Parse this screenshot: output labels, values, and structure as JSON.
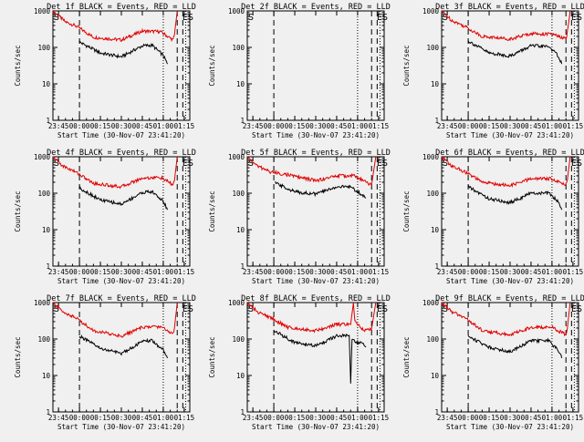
{
  "figure": {
    "background": "#f0f0f0",
    "axis_color": "#000000",
    "events_color": "#000000",
    "lld_color": "#e00000"
  },
  "chart_data": [
    {
      "type": "line",
      "title": "Det 1f BLACK = Events, RED = LLD",
      "xlabel": "Start Time (30-Nov-07 23:41:20)",
      "ylabel": "Counts/sec",
      "y_scale": "log",
      "ylim": [
        1,
        1000
      ],
      "x_ticks": [
        "23:45",
        "00:00",
        "00:15",
        "00:30",
        "00:45",
        "01:00",
        "01:15"
      ],
      "markers": [
        {
          "label": "S",
          "x": "23:41"
        },
        {
          "label": "E",
          "x": "01:13"
        },
        {
          "label": "S",
          "x": "01:17"
        }
      ],
      "vlines_dashed": [
        "00:00",
        "01:10",
        "01:14"
      ],
      "vlines_dotted": [
        "01:00",
        "01:16"
      ],
      "series": [
        {
          "name": "LLD",
          "color": "#e00000",
          "points": [
            [
              "23:41",
              1000
            ],
            [
              "23:50",
              500
            ],
            [
              "23:58",
              380
            ],
            [
              "00:10",
              190
            ],
            [
              "00:30",
              160
            ],
            [
              "00:45",
              280
            ],
            [
              "00:58",
              270
            ],
            [
              "01:07",
              160
            ],
            [
              "01:08",
              220
            ],
            [
              "01:10",
              1000
            ]
          ]
        },
        {
          "name": "Events",
          "color": "#000000",
          "points": [
            [
              "00:00",
              140
            ],
            [
              "00:15",
              70
            ],
            [
              "00:30",
              55
            ],
            [
              "00:45",
              110
            ],
            [
              "00:52",
              115
            ],
            [
              "01:00",
              60
            ],
            [
              "01:03",
              35
            ]
          ]
        }
      ]
    },
    {
      "type": "line",
      "title": "Det 2f BLACK = Events, RED = LLD",
      "xlabel": "Start Time (30-Nov-07 23:41:20)",
      "ylabel": "Counts/sec",
      "y_scale": "log",
      "ylim": [
        1,
        1000
      ],
      "x_ticks": [
        "23:45",
        "00:00",
        "00:15",
        "00:30",
        "00:45",
        "01:00",
        "01:15"
      ],
      "markers": [
        {
          "label": "S",
          "x": "23:41"
        },
        {
          "label": "E",
          "x": "01:13"
        },
        {
          "label": "S",
          "x": "01:17"
        }
      ],
      "vlines_dashed": [
        "00:00",
        "01:10",
        "01:14"
      ],
      "vlines_dotted": [
        "01:00",
        "01:16"
      ],
      "series": []
    },
    {
      "type": "line",
      "title": "Det 3f BLACK = Events, RED = LLD",
      "xlabel": "Start Time (30-Nov-07 23:41:20)",
      "ylabel": "Counts/sec",
      "y_scale": "log",
      "ylim": [
        1,
        1000
      ],
      "x_ticks": [
        "23:45",
        "00:00",
        "00:15",
        "00:30",
        "00:45",
        "01:00",
        "01:15"
      ],
      "markers": [
        {
          "label": "S",
          "x": "23:41"
        },
        {
          "label": "E",
          "x": "01:13"
        },
        {
          "label": "S",
          "x": "01:17"
        }
      ],
      "vlines_dashed": [
        "00:00",
        "01:10",
        "01:14"
      ],
      "vlines_dotted": [
        "01:00",
        "01:16"
      ],
      "series": [
        {
          "name": "LLD",
          "color": "#e00000",
          "points": [
            [
              "23:41",
              1000
            ],
            [
              "23:48",
              560
            ],
            [
              "23:58",
              370
            ],
            [
              "00:10",
              200
            ],
            [
              "00:30",
              170
            ],
            [
              "00:45",
              240
            ],
            [
              "01:00",
              230
            ],
            [
              "01:10",
              170
            ],
            [
              "01:11",
              260
            ],
            [
              "01:13",
              1000
            ]
          ]
        },
        {
          "name": "Events",
          "color": "#000000",
          "points": [
            [
              "00:00",
              150
            ],
            [
              "00:15",
              70
            ],
            [
              "00:30",
              58
            ],
            [
              "00:45",
              110
            ],
            [
              "00:58",
              105
            ],
            [
              "01:05",
              55
            ],
            [
              "01:07",
              35
            ]
          ]
        }
      ]
    },
    {
      "type": "line",
      "title": "Det 4f BLACK = Events, RED = LLD",
      "xlabel": "Start Time (30-Nov-07 23:41:20)",
      "ylabel": "Counts/sec",
      "y_scale": "log",
      "ylim": [
        1,
        1000
      ],
      "x_ticks": [
        "23:45",
        "00:00",
        "00:15",
        "00:30",
        "00:45",
        "01:00",
        "01:15"
      ],
      "markers": [
        {
          "label": "S",
          "x": "23:41"
        },
        {
          "label": "E",
          "x": "01:13"
        },
        {
          "label": "S",
          "x": "01:17"
        }
      ],
      "vlines_dashed": [
        "00:00",
        "01:10",
        "01:14"
      ],
      "vlines_dotted": [
        "01:00",
        "01:16"
      ],
      "series": [
        {
          "name": "LLD",
          "color": "#e00000",
          "points": [
            [
              "23:41",
              1000
            ],
            [
              "23:48",
              560
            ],
            [
              "23:58",
              370
            ],
            [
              "00:10",
              185
            ],
            [
              "00:30",
              150
            ],
            [
              "00:45",
              260
            ],
            [
              "00:58",
              270
            ],
            [
              "01:07",
              170
            ],
            [
              "01:08",
              220
            ],
            [
              "01:10",
              1000
            ]
          ]
        },
        {
          "name": "Events",
          "color": "#000000",
          "points": [
            [
              "00:00",
              140
            ],
            [
              "00:15",
              65
            ],
            [
              "00:30",
              50
            ],
            [
              "00:45",
              105
            ],
            [
              "00:52",
              110
            ],
            [
              "01:00",
              60
            ],
            [
              "01:03",
              35
            ]
          ]
        }
      ]
    },
    {
      "type": "line",
      "title": "Det 5f BLACK = Events, RED = LLD",
      "xlabel": "Start Time (30-Nov-07 23:41:20)",
      "ylabel": "Counts/sec",
      "y_scale": "log",
      "ylim": [
        1,
        1000
      ],
      "x_ticks": [
        "23:45",
        "00:00",
        "00:15",
        "00:30",
        "00:45",
        "01:00",
        "01:15"
      ],
      "markers": [
        {
          "label": "S",
          "x": "23:41"
        },
        {
          "label": "E",
          "x": "01:13"
        },
        {
          "label": "S",
          "x": "01:17"
        }
      ],
      "vlines_dashed": [
        "00:00",
        "01:10",
        "01:14"
      ],
      "vlines_dotted": [
        "01:00",
        "01:16"
      ],
      "series": [
        {
          "name": "LLD",
          "color": "#e00000",
          "points": [
            [
              "23:41",
              1000
            ],
            [
              "23:48",
              560
            ],
            [
              "23:58",
              380
            ],
            [
              "00:10",
              320
            ],
            [
              "00:30",
              220
            ],
            [
              "00:45",
              300
            ],
            [
              "00:58",
              300
            ],
            [
              "01:07",
              190
            ],
            [
              "01:10",
              170
            ],
            [
              "01:13",
              1000
            ]
          ]
        },
        {
          "name": "Events",
          "color": "#000000",
          "points": [
            [
              "00:01",
              190
            ],
            [
              "00:15",
              110
            ],
            [
              "00:30",
              95
            ],
            [
              "00:45",
              150
            ],
            [
              "00:55",
              150
            ],
            [
              "01:03",
              90
            ],
            [
              "01:06",
              75
            ]
          ]
        }
      ]
    },
    {
      "type": "line",
      "title": "Det 6f BLACK = Events, RED = LLD",
      "xlabel": "Start Time (30-Nov-07 23:41:20)",
      "ylabel": "Counts/sec",
      "y_scale": "log",
      "ylim": [
        1,
        1000
      ],
      "x_ticks": [
        "23:45",
        "00:00",
        "00:15",
        "00:30",
        "00:45",
        "01:00",
        "01:15"
      ],
      "markers": [
        {
          "label": "S",
          "x": "23:41"
        },
        {
          "label": "E",
          "x": "01:13"
        },
        {
          "label": "S",
          "x": "01:17"
        }
      ],
      "vlines_dashed": [
        "00:00",
        "01:10",
        "01:14"
      ],
      "vlines_dotted": [
        "01:00",
        "01:16"
      ],
      "series": [
        {
          "name": "LLD",
          "color": "#e00000",
          "points": [
            [
              "23:41",
              1000
            ],
            [
              "23:48",
              560
            ],
            [
              "23:58",
              380
            ],
            [
              "00:10",
              200
            ],
            [
              "00:30",
              160
            ],
            [
              "00:45",
              250
            ],
            [
              "01:00",
              250
            ],
            [
              "01:10",
              170
            ],
            [
              "01:11",
              230
            ],
            [
              "01:13",
              1000
            ]
          ]
        },
        {
          "name": "Events",
          "color": "#000000",
          "points": [
            [
              "00:00",
              150
            ],
            [
              "00:15",
              70
            ],
            [
              "00:30",
              55
            ],
            [
              "00:45",
              100
            ],
            [
              "00:58",
              100
            ],
            [
              "01:05",
              55
            ],
            [
              "01:07",
              35
            ]
          ]
        }
      ]
    },
    {
      "type": "line",
      "title": "Det 7f BLACK = Events, RED = LLD",
      "xlabel": "Start Time (30-Nov-07 23:41:20)",
      "ylabel": "Counts/sec",
      "y_scale": "log",
      "ylim": [
        1,
        1000
      ],
      "x_ticks": [
        "23:45",
        "00:00",
        "00:15",
        "00:30",
        "00:45",
        "01:00",
        "01:15"
      ],
      "markers": [
        {
          "label": "S",
          "x": "23:41"
        },
        {
          "label": "E",
          "x": "01:13"
        },
        {
          "label": "S",
          "x": "01:17"
        }
      ],
      "vlines_dashed": [
        "00:00",
        "01:10",
        "01:14"
      ],
      "vlines_dotted": [
        "01:00",
        "01:16"
      ],
      "series": [
        {
          "name": "LLD",
          "color": "#e00000",
          "points": [
            [
              "23:41",
              1000
            ],
            [
              "23:48",
              560
            ],
            [
              "23:58",
              370
            ],
            [
              "00:10",
              170
            ],
            [
              "00:30",
              120
            ],
            [
              "00:45",
              210
            ],
            [
              "00:58",
              220
            ],
            [
              "01:07",
              140
            ],
            [
              "01:08",
              200
            ],
            [
              "01:10",
              1000
            ]
          ]
        },
        {
          "name": "Events",
          "color": "#000000",
          "points": [
            [
              "00:00",
              120
            ],
            [
              "00:15",
              55
            ],
            [
              "00:30",
              40
            ],
            [
              "00:45",
              85
            ],
            [
              "00:52",
              90
            ],
            [
              "01:00",
              50
            ],
            [
              "01:03",
              30
            ]
          ]
        }
      ]
    },
    {
      "type": "line",
      "title": "Det 8f BLACK = Events, RED = LLD",
      "xlabel": "Start Time (30-Nov-07 23:41:20)",
      "ylabel": "Counts/sec",
      "y_scale": "log",
      "ylim": [
        1,
        1000
      ],
      "x_ticks": [
        "23:45",
        "00:00",
        "00:15",
        "00:30",
        "00:45",
        "01:00",
        "01:15"
      ],
      "markers": [
        {
          "label": "S",
          "x": "23:41"
        },
        {
          "label": "E",
          "x": "01:13"
        },
        {
          "label": "S",
          "x": "01:17"
        }
      ],
      "vlines_dashed": [
        "00:00",
        "01:10",
        "01:14"
      ],
      "vlines_dotted": [
        "01:00",
        "01:16"
      ],
      "series": [
        {
          "name": "LLD",
          "color": "#e00000",
          "points": [
            [
              "23:41",
              1000
            ],
            [
              "23:48",
              560
            ],
            [
              "23:58",
              380
            ],
            [
              "00:10",
              210
            ],
            [
              "00:30",
              170
            ],
            [
              "00:45",
              250
            ],
            [
              "00:55",
              250
            ],
            [
              "00:57",
              1000
            ],
            [
              "00:58",
              300
            ],
            [
              "01:05",
              170
            ],
            [
              "01:10",
              190
            ],
            [
              "01:13",
              1000
            ]
          ]
        },
        {
          "name": "Events",
          "color": "#000000",
          "points": [
            [
              "00:00",
              170
            ],
            [
              "00:15",
              80
            ],
            [
              "00:30",
              65
            ],
            [
              "00:45",
              120
            ],
            [
              "00:54",
              125
            ],
            [
              "00:55",
              6
            ],
            [
              "00:56",
              90
            ],
            [
              "01:03",
              75
            ],
            [
              "01:06",
              60
            ]
          ]
        }
      ]
    },
    {
      "type": "line",
      "title": "Det 9f BLACK = Events, RED = LLD",
      "xlabel": "Start Time (30-Nov-07 23:41:20)",
      "ylabel": "Counts/sec",
      "y_scale": "log",
      "ylim": [
        1,
        1000
      ],
      "x_ticks": [
        "23:45",
        "00:00",
        "00:15",
        "00:30",
        "00:45",
        "01:00",
        "01:15"
      ],
      "markers": [
        {
          "label": "S",
          "x": "23:41"
        },
        {
          "label": "E",
          "x": "01:13"
        },
        {
          "label": "S",
          "x": "01:17"
        }
      ],
      "vlines_dashed": [
        "00:00",
        "01:10",
        "01:14"
      ],
      "vlines_dotted": [
        "01:00",
        "01:16"
      ],
      "series": [
        {
          "name": "LLD",
          "color": "#e00000",
          "points": [
            [
              "23:41",
              1000
            ],
            [
              "23:48",
              560
            ],
            [
              "23:58",
              380
            ],
            [
              "00:10",
              170
            ],
            [
              "00:30",
              130
            ],
            [
              "00:45",
              210
            ],
            [
              "01:00",
              210
            ],
            [
              "01:10",
              130
            ],
            [
              "01:11",
              200
            ],
            [
              "01:13",
              1000
            ]
          ]
        },
        {
          "name": "Events",
          "color": "#000000",
          "points": [
            [
              "00:00",
              120
            ],
            [
              "00:15",
              60
            ],
            [
              "00:30",
              45
            ],
            [
              "00:45",
              90
            ],
            [
              "00:58",
              90
            ],
            [
              "01:05",
              45
            ],
            [
              "01:07",
              30
            ]
          ]
        }
      ]
    }
  ]
}
